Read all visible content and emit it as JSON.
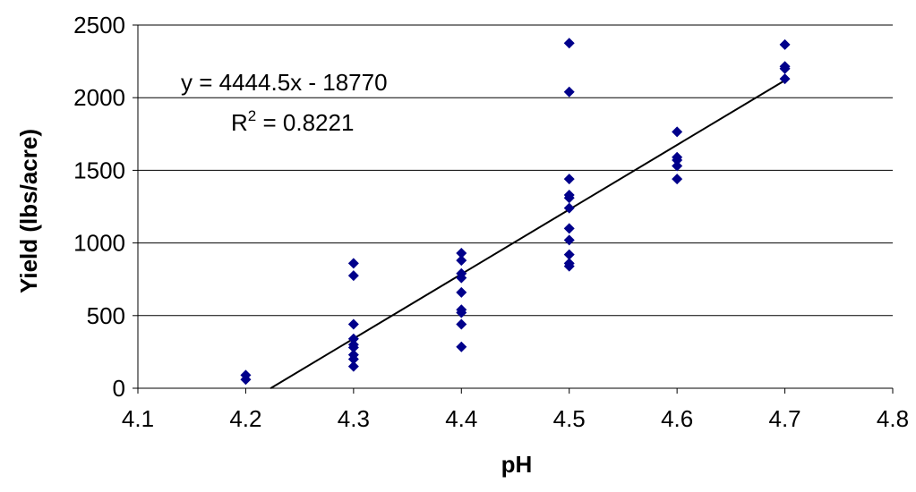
{
  "chart_data": {
    "type": "scatter",
    "title": "",
    "xlabel": "pH",
    "ylabel": "Yield (lbs/acre)",
    "xlim": [
      4.1,
      4.8
    ],
    "ylim": [
      0,
      2500
    ],
    "x_ticks": [
      "4.1",
      "4.2",
      "4.3",
      "4.4",
      "4.5",
      "4.6",
      "4.7",
      "4.8"
    ],
    "y_ticks": [
      "0",
      "500",
      "1000",
      "1500",
      "2000",
      "2500"
    ],
    "grid": "horizontal",
    "legend": "none",
    "marker_color": "#00008B",
    "series": [
      {
        "points": [
          [
            4.2,
            90
          ],
          [
            4.2,
            60
          ],
          [
            4.3,
            860
          ],
          [
            4.3,
            775
          ],
          [
            4.3,
            440
          ],
          [
            4.3,
            340
          ],
          [
            4.3,
            300
          ],
          [
            4.3,
            280
          ],
          [
            4.3,
            230
          ],
          [
            4.3,
            200
          ],
          [
            4.3,
            150
          ],
          [
            4.4,
            930
          ],
          [
            4.4,
            880
          ],
          [
            4.4,
            790
          ],
          [
            4.4,
            760
          ],
          [
            4.4,
            660
          ],
          [
            4.4,
            540
          ],
          [
            4.4,
            520
          ],
          [
            4.4,
            440
          ],
          [
            4.4,
            285
          ],
          [
            4.5,
            2375
          ],
          [
            4.5,
            2040
          ],
          [
            4.5,
            1440
          ],
          [
            4.5,
            1330
          ],
          [
            4.5,
            1310
          ],
          [
            4.5,
            1240
          ],
          [
            4.5,
            1100
          ],
          [
            4.5,
            1020
          ],
          [
            4.5,
            920
          ],
          [
            4.5,
            860
          ],
          [
            4.5,
            840
          ],
          [
            4.6,
            1765
          ],
          [
            4.6,
            1590
          ],
          [
            4.6,
            1570
          ],
          [
            4.6,
            1530
          ],
          [
            4.6,
            1440
          ],
          [
            4.7,
            2365
          ],
          [
            4.7,
            2215
          ],
          [
            4.7,
            2200
          ],
          [
            4.7,
            2130
          ]
        ]
      }
    ],
    "trendline": {
      "slope": 4444.5,
      "intercept": -18770,
      "x_range": [
        4.223,
        4.7
      ],
      "equation_label": "y = 4444.5x - 18770",
      "r2_prefix": "R",
      "r2_superscript": "2",
      "r2_value_label": " = 0.8221"
    }
  }
}
